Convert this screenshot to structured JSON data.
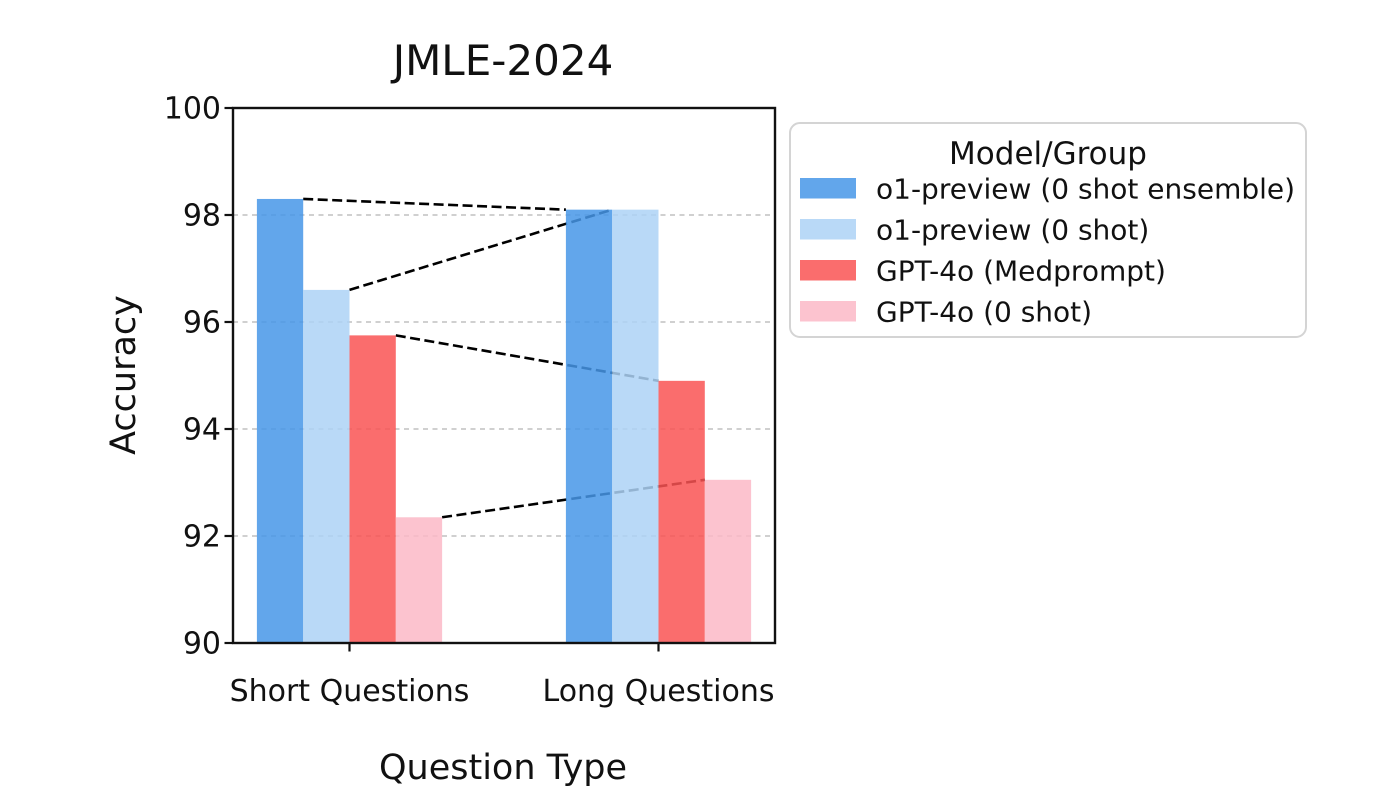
{
  "figure": {
    "background": "#ffffff",
    "frame_color": "#111111",
    "gridline_color": "#c9c9c9",
    "connector_color": "#000000"
  },
  "chart_data": {
    "type": "bar",
    "title": "JMLE-2024",
    "xlabel": "Question Type",
    "ylabel": "Accuracy",
    "categories": [
      "Short Questions",
      "Long Questions"
    ],
    "series": [
      {
        "name": "o1-preview (0 shot ensemble)",
        "color": "#62A6EB",
        "values": [
          98.3,
          98.1
        ]
      },
      {
        "name": "o1-preview (0 shot)",
        "color": "#B9D9F7",
        "values": [
          96.6,
          98.1
        ]
      },
      {
        "name": "GPT-4o (Medprompt)",
        "color": "#FA6E6E",
        "values": [
          95.75,
          94.9
        ]
      },
      {
        "name": "GPT-4o (0 shot)",
        "color": "#FCC3CF",
        "values": [
          92.35,
          93.05
        ]
      }
    ],
    "ylim": [
      90,
      100
    ],
    "yticks": [
      90,
      92,
      94,
      96,
      98,
      100
    ],
    "bar_alpha": 0.85,
    "grid": "horizontal dashed gridlines at 92, 94, 96, 98, drawn behind translucent bars",
    "connectors": "black dashed lines linking each model's bar top across the two question types",
    "legend": {
      "title": "Model/Group",
      "position": "outside upper right"
    }
  }
}
